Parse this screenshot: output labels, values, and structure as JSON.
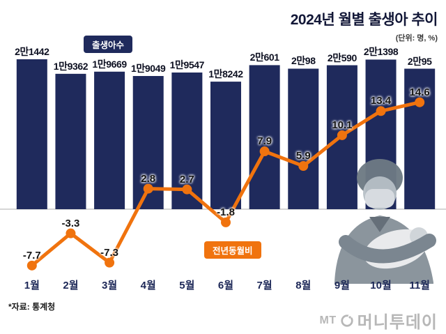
{
  "header": {
    "title": "2024년 월별 출생아 추이",
    "unit": "(단위: 명, %)"
  },
  "legend": {
    "bars": "출생아수",
    "line": "전년동월비"
  },
  "footnote": "*자료: 통계청",
  "logo": {
    "mt": "MT",
    "name": "머니투데이"
  },
  "colors": {
    "navy": "#1f2a5c",
    "orange": "#f0730e",
    "axis_label": "#1c2757",
    "value_label": "#0d1021",
    "gridline": "#c9c9c9",
    "logo_gray": "#b7b7b7"
  },
  "chart_data": {
    "type": "bar",
    "title": "2024년 월별 출생아 추이",
    "unit_note": "(단위: 명, %)",
    "categories": [
      "1월",
      "2월",
      "3월",
      "4월",
      "5월",
      "6월",
      "7월",
      "8월",
      "9월",
      "10월",
      "11월"
    ],
    "series": [
      {
        "name": "출생아수",
        "type": "bar",
        "values": [
          21442,
          19362,
          19669,
          19049,
          19547,
          18242,
          20601,
          20098,
          20590,
          21398,
          20095
        ],
        "labels": [
          "2만1442",
          "1만9362",
          "1만9669",
          "1만9049",
          "1만9547",
          "1만8242",
          "2만601",
          "2만98",
          "2만590",
          "2만1398",
          "2만95"
        ]
      },
      {
        "name": "전년동월비",
        "type": "line",
        "values": [
          -7.7,
          -3.3,
          -7.3,
          2.8,
          2.7,
          -1.8,
          7.9,
          5.9,
          10.1,
          13.4,
          14.6
        ],
        "labels": [
          "-7.7",
          "-3.3",
          "-7.3",
          "2.8",
          "2.7",
          "-1.8",
          "7.9",
          "5.9",
          "10.1",
          "13.4",
          "14.6"
        ]
      }
    ],
    "bar_axis": {
      "min": 0,
      "max": 21442
    },
    "line_axis": {
      "zero_baseline_shown": true
    },
    "legend_position": "inline-badges",
    "grid": "single zero baseline",
    "source": "통계청"
  }
}
